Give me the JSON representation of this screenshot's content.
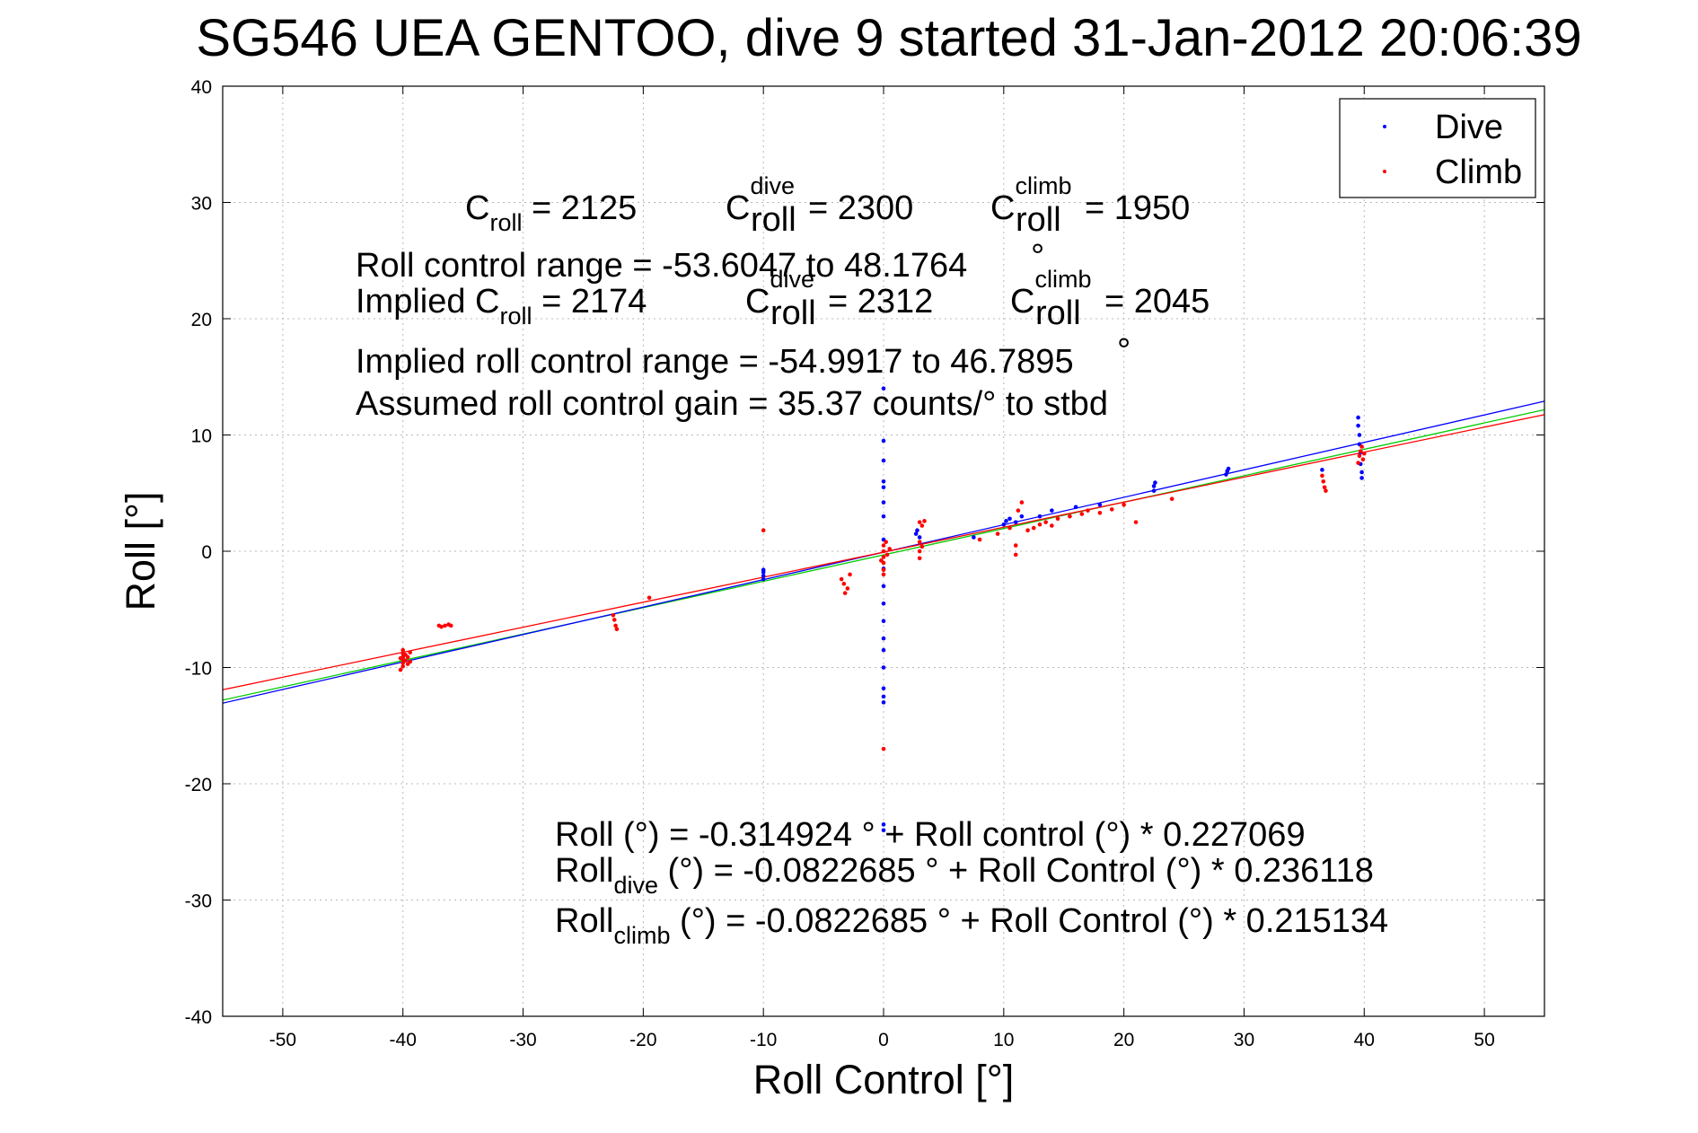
{
  "chart_data": {
    "type": "scatter",
    "title": "SG546 UEA GENTOO, dive 9 started 31-Jan-2012 20:06:39",
    "xlabel": "Roll Control [°]",
    "ylabel": "Roll [°]",
    "xlim": [
      -55,
      55
    ],
    "ylim": [
      -40,
      40
    ],
    "xticks": [
      -50,
      -40,
      -30,
      -20,
      -10,
      0,
      10,
      20,
      30,
      40,
      50
    ],
    "yticks": [
      -40,
      -30,
      -20,
      -10,
      0,
      10,
      20,
      30,
      40
    ],
    "grid": true,
    "legend_position": "top-right",
    "colors": {
      "dive": "#0000ff",
      "climb": "#ff0000",
      "combined_fit": "#00cc00"
    },
    "series": [
      {
        "name": "Dive",
        "color": "#0000ff",
        "points": [
          [
            -10.0,
            -1.8
          ],
          [
            -10.0,
            -2.1
          ],
          [
            -10.0,
            -2.4
          ],
          [
            -10.0,
            -1.6
          ],
          [
            0.0,
            14.0
          ],
          [
            0.0,
            9.5
          ],
          [
            0.0,
            7.8
          ],
          [
            0.0,
            6.0
          ],
          [
            0.0,
            5.5
          ],
          [
            0.0,
            4.2
          ],
          [
            0.0,
            3.0
          ],
          [
            0.0,
            1.0
          ],
          [
            0.0,
            -1.5
          ],
          [
            0.0,
            -3.0
          ],
          [
            0.0,
            -4.5
          ],
          [
            0.0,
            -6.0
          ],
          [
            0.0,
            -7.5
          ],
          [
            0.0,
            -8.5
          ],
          [
            0.0,
            -10.0
          ],
          [
            0.0,
            -11.8
          ],
          [
            0.0,
            -12.5
          ],
          [
            0.0,
            -13.0
          ],
          [
            0.0,
            -23.5
          ],
          [
            0.0,
            -24.0
          ],
          [
            2.7,
            1.5
          ],
          [
            2.8,
            1.8
          ],
          [
            3.0,
            1.2
          ],
          [
            7.5,
            1.2
          ],
          [
            10.0,
            2.3
          ],
          [
            10.2,
            2.6
          ],
          [
            10.5,
            2.8
          ],
          [
            11.0,
            2.5
          ],
          [
            11.5,
            3.0
          ],
          [
            13.0,
            3.0
          ],
          [
            14.0,
            3.5
          ],
          [
            16.0,
            3.8
          ],
          [
            18.0,
            4.0
          ],
          [
            22.5,
            5.2
          ],
          [
            22.5,
            5.6
          ],
          [
            22.6,
            5.9
          ],
          [
            28.5,
            6.6
          ],
          [
            28.6,
            6.9
          ],
          [
            28.7,
            7.1
          ],
          [
            36.5,
            7.0
          ],
          [
            39.5,
            11.5
          ],
          [
            39.5,
            10.8
          ],
          [
            39.6,
            10.0
          ],
          [
            39.6,
            9.2
          ],
          [
            39.7,
            8.5
          ],
          [
            39.7,
            7.5
          ],
          [
            39.8,
            6.8
          ],
          [
            39.8,
            6.3
          ]
        ]
      },
      {
        "name": "Climb",
        "color": "#ff0000",
        "points": [
          [
            -40.0,
            -8.5
          ],
          [
            -40.0,
            -8.8
          ],
          [
            -40.0,
            -9.1
          ],
          [
            -40.0,
            -9.3
          ],
          [
            -40.0,
            -9.6
          ],
          [
            -40.0,
            -9.9
          ],
          [
            -39.8,
            -8.9
          ],
          [
            -39.8,
            -9.4
          ],
          [
            -39.6,
            -9.1
          ],
          [
            -39.6,
            -9.7
          ],
          [
            -39.4,
            -8.7
          ],
          [
            -39.4,
            -9.5
          ],
          [
            -40.2,
            -9.2
          ],
          [
            -40.2,
            -10.2
          ],
          [
            -37.0,
            -6.4
          ],
          [
            -36.8,
            -6.5
          ],
          [
            -36.5,
            -6.4
          ],
          [
            -36.2,
            -6.3
          ],
          [
            -36.0,
            -6.4
          ],
          [
            -22.5,
            -5.5
          ],
          [
            -22.4,
            -5.9
          ],
          [
            -22.3,
            -6.4
          ],
          [
            -22.2,
            -6.7
          ],
          [
            -19.5,
            -4.0
          ],
          [
            -10.0,
            1.8
          ],
          [
            -3.5,
            -2.4
          ],
          [
            -3.3,
            -2.8
          ],
          [
            -3.0,
            -3.2
          ],
          [
            -2.8,
            -2.0
          ],
          [
            -3.2,
            -3.6
          ],
          [
            0.0,
            0.5
          ],
          [
            0.0,
            0.0
          ],
          [
            0.0,
            -0.5
          ],
          [
            0.0,
            -1.0
          ],
          [
            0.0,
            -1.6
          ],
          [
            0.0,
            -2.0
          ],
          [
            0.2,
            0.8
          ],
          [
            0.3,
            -0.3
          ],
          [
            0.5,
            0.2
          ],
          [
            -0.2,
            -0.8
          ],
          [
            0.0,
            -17.0
          ],
          [
            3.0,
            2.5
          ],
          [
            3.2,
            2.2
          ],
          [
            3.4,
            2.6
          ],
          [
            3.0,
            0.8
          ],
          [
            3.2,
            0.4
          ],
          [
            3.0,
            0.0
          ],
          [
            3.0,
            -0.6
          ],
          [
            8.0,
            1.0
          ],
          [
            9.5,
            1.5
          ],
          [
            10.5,
            2.0
          ],
          [
            11.0,
            0.5
          ],
          [
            11.0,
            -0.3
          ],
          [
            11.2,
            3.5
          ],
          [
            11.5,
            4.2
          ],
          [
            12.0,
            1.8
          ],
          [
            12.5,
            2.0
          ],
          [
            13.0,
            2.3
          ],
          [
            13.5,
            2.5
          ],
          [
            14.0,
            2.2
          ],
          [
            14.5,
            2.8
          ],
          [
            15.5,
            3.0
          ],
          [
            16.5,
            3.2
          ],
          [
            17.0,
            3.5
          ],
          [
            18.0,
            3.3
          ],
          [
            19.0,
            3.6
          ],
          [
            20.0,
            4.0
          ],
          [
            21.0,
            2.5
          ],
          [
            24.0,
            4.5
          ],
          [
            36.5,
            6.5
          ],
          [
            36.6,
            6.0
          ],
          [
            36.7,
            5.5
          ],
          [
            36.8,
            5.2
          ],
          [
            39.5,
            7.6
          ],
          [
            39.6,
            8.2
          ],
          [
            39.7,
            8.6
          ],
          [
            39.8,
            9.0
          ],
          [
            39.9,
            7.9
          ],
          [
            40.0,
            8.4
          ]
        ]
      }
    ],
    "fit_lines": [
      {
        "label": "overall",
        "color": "#00cc00",
        "intercept": -0.314924,
        "slope": 0.227069
      },
      {
        "label": "dive",
        "color": "#0000ff",
        "intercept": -0.0822685,
        "slope": 0.236118
      },
      {
        "label": "climb",
        "color": "#ff0000",
        "intercept": -0.0822685,
        "slope": 0.215134
      }
    ]
  },
  "legend": [
    {
      "label": "Dive",
      "color": "#0000ff"
    },
    {
      "label": "Climb",
      "color": "#ff0000"
    }
  ],
  "annotations": {
    "croll_line": {
      "croll_main": "C",
      "croll_sub": "roll",
      "croll_value": " = 2125",
      "dive_main": "C",
      "dive_sup": "dive",
      "dive_sub": "roll",
      "dive_value": " = 2300",
      "climb_main": "C",
      "climb_sup": "climb",
      "climb_sub": "roll",
      "climb_value": " = 1950"
    },
    "range_line": "Roll control range = -53.6047 to 48.1764",
    "range_degree": "°",
    "implied_line": {
      "prefix": "Implied C",
      "croll_sub": "roll",
      "croll_value": " = 2174",
      "dive_main": "C",
      "dive_sup": "dive",
      "dive_sub": "roll",
      "dive_value": " = 2312",
      "climb_main": "C",
      "climb_sup": "climb",
      "climb_sub": "roll",
      "climb_value": " = 2045"
    },
    "implied_range_line": "Implied roll control range = -54.9917 to 46.7895",
    "implied_range_degree": "°",
    "gain_line": "Assumed roll control gain = 35.37 counts/° to stbd",
    "fit_line_1": "Roll (°) = -0.314924 ° + Roll control (°) * 0.227069",
    "fit_line_2": {
      "main": "Roll",
      "sub": "dive",
      "rest": " (°) = -0.0822685 ° + Roll Control (°) * 0.236118"
    },
    "fit_line_3": {
      "main": "Roll",
      "sub": "climb",
      "rest": " (°) = -0.0822685 ° + Roll Control (°) * 0.215134"
    }
  }
}
